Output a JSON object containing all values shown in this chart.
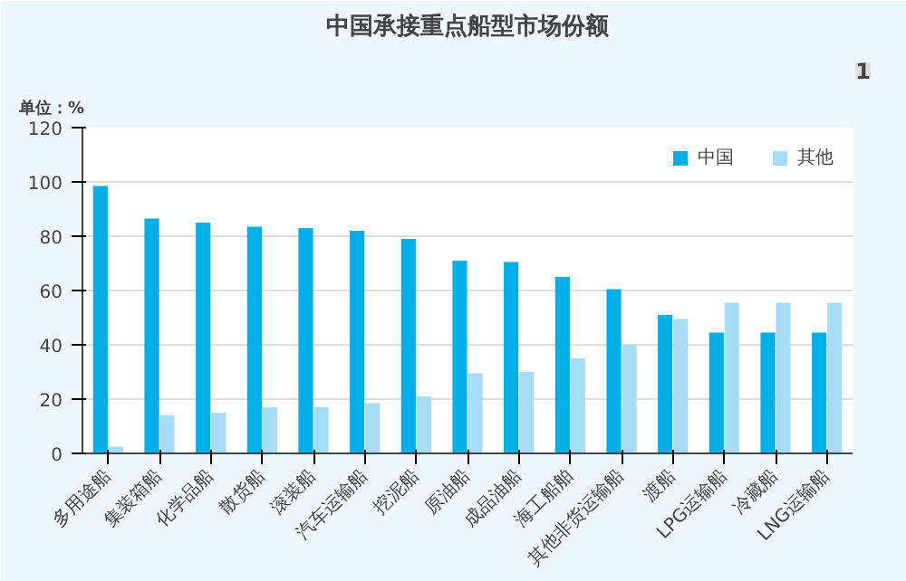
{
  "chart_data": {
    "type": "bar",
    "title": "中国承接重点船型市场份额",
    "ylabel": "单位：%",
    "annotations": [
      "1"
    ],
    "categories": [
      "多用途船",
      "集装箱船",
      "化学品船",
      "散货船",
      "滚装船",
      "汽车运输船",
      "挖泥船",
      "原油船",
      "成品油船",
      "海工船舶",
      "其他非货运输船",
      "渡船",
      "LPG运输船",
      "冷藏船",
      "LNG运输船"
    ],
    "series": [
      {
        "name": "中国",
        "color": "#00aee8",
        "values": [
          98.5,
          86.5,
          85,
          83.5,
          83,
          82,
          79,
          71,
          70.5,
          65,
          60.5,
          51,
          44.5,
          44.5,
          44.5
        ]
      },
      {
        "name": "其他",
        "color": "#a6dcf5",
        "values": [
          2.5,
          14,
          15,
          17,
          17,
          18.5,
          21,
          29.5,
          30,
          35,
          40,
          49.5,
          55.5,
          55.5,
          55.5
        ]
      }
    ],
    "ylim": [
      0,
      120
    ],
    "yticks": [
      0,
      20,
      40,
      60,
      80,
      100,
      120
    ],
    "grid": "y",
    "legend": "top right"
  }
}
